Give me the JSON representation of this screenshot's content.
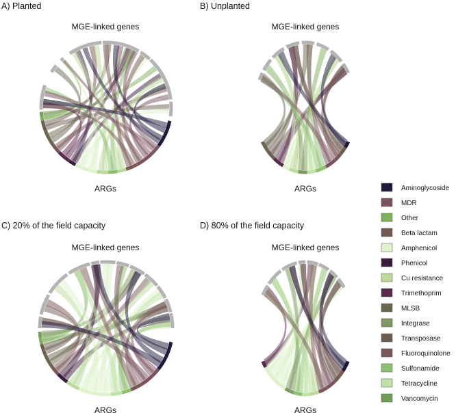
{
  "panels": [
    {
      "title": "A) Planted",
      "top_label": "MGE-linked genes",
      "bottom_label": "ARGs",
      "chord_width": 5,
      "top_arcs": [
        [
          171,
          182
        ],
        [
          160,
          171
        ],
        [
          140,
          147
        ],
        [
          131,
          134
        ],
        [
          113,
          124
        ],
        [
          108,
          113
        ],
        [
          94,
          108
        ],
        [
          85,
          93
        ],
        [
          72,
          85
        ],
        [
          67,
          72
        ],
        [
          60,
          67
        ],
        [
          48,
          58
        ],
        [
          34,
          47
        ],
        [
          23,
          34
        ],
        [
          14,
          23
        ],
        [
          7,
          14
        ],
        [
          -8,
          5
        ]
      ],
      "bottom_arcs": [
        {
          "range": [
            184,
            188
          ],
          "category": "Integrase"
        },
        {
          "range": [
            188,
            192
          ],
          "category": "Other"
        },
        {
          "range": [
            192,
            202
          ],
          "category": "Transposase"
        },
        {
          "range": [
            202,
            216
          ],
          "category": "MLSB"
        },
        {
          "range": [
            216,
            224
          ],
          "category": "Fluoroquinolone"
        },
        {
          "range": [
            224,
            236
          ],
          "category": "Trimethoprim"
        },
        {
          "range": [
            236,
            242
          ],
          "category": "Phenicol"
        },
        {
          "range": [
            242,
            252
          ],
          "category": "Amphenicol"
        },
        {
          "range": [
            252,
            262
          ],
          "category": "Amphenicol"
        },
        {
          "range": [
            262,
            272
          ],
          "category": "Cu resistance"
        },
        {
          "range": [
            272,
            280
          ],
          "category": "Sulfonamide"
        },
        {
          "range": [
            280,
            288
          ],
          "category": "Cu resistance"
        },
        {
          "range": [
            288,
            298
          ],
          "category": "Fluoroquinolone"
        },
        {
          "range": [
            298,
            306
          ],
          "category": "Fluoroquinolone"
        },
        {
          "range": [
            306,
            316
          ],
          "category": "MDR"
        },
        {
          "range": [
            316,
            324
          ],
          "category": "MDR"
        },
        {
          "range": [
            324,
            334
          ],
          "category": "Aminoglycoside"
        },
        {
          "range": [
            334,
            348
          ],
          "category": "Aminoglycoside"
        }
      ]
    },
    {
      "title": "B) Unplanted",
      "top_label": "MGE-linked genes",
      "bottom_label": "ARGs",
      "chord_width": 7,
      "top_arcs": [
        [
          148,
          155
        ],
        [
          133,
          145
        ],
        [
          115,
          130
        ],
        [
          97,
          112
        ],
        [
          80,
          94
        ],
        [
          63,
          77
        ],
        [
          45,
          60
        ],
        [
          32,
          42
        ]
      ],
      "bottom_arcs": [
        {
          "range": [
            212,
            222
          ],
          "category": "MLSB"
        },
        {
          "range": [
            222,
            232
          ],
          "category": "Transposase"
        },
        {
          "range": [
            232,
            244
          ],
          "category": "Trimethoprim"
        },
        {
          "range": [
            244,
            252
          ],
          "category": "Amphenicol"
        },
        {
          "range": [
            252,
            262
          ],
          "category": "Cu resistance"
        },
        {
          "range": [
            262,
            272
          ],
          "category": "Integrase"
        },
        {
          "range": [
            272,
            282
          ],
          "category": "Tetracycline"
        },
        {
          "range": [
            282,
            294
          ],
          "category": "Sulfonamide"
        },
        {
          "range": [
            294,
            306
          ],
          "category": "MDR"
        },
        {
          "range": [
            306,
            314
          ],
          "category": "Fluoroquinolone"
        },
        {
          "range": [
            314,
            322
          ],
          "category": "Transposase"
        },
        {
          "range": [
            322,
            328
          ],
          "category": "Aminoglycoside"
        }
      ]
    },
    {
      "title": "C) 20% of the field capacity",
      "top_label": "MGE-linked genes",
      "bottom_label": "ARGs",
      "chord_width": 6,
      "top_arcs": [
        [
          170,
          180
        ],
        [
          150,
          168
        ],
        [
          126,
          148
        ],
        [
          104,
          124
        ],
        [
          96,
          103
        ],
        [
          82,
          95
        ],
        [
          70,
          81
        ],
        [
          55,
          69
        ],
        [
          40,
          54
        ],
        [
          27,
          39
        ],
        [
          14,
          26
        ],
        [
          6,
          13
        ],
        [
          0,
          6
        ]
      ],
      "bottom_arcs": [
        {
          "range": [
            183,
            188
          ],
          "category": "Integrase"
        },
        {
          "range": [
            188,
            194
          ],
          "category": "Other"
        },
        {
          "range": [
            194,
            204
          ],
          "category": "Transposase"
        },
        {
          "range": [
            204,
            216
          ],
          "category": "MLSB"
        },
        {
          "range": [
            216,
            224
          ],
          "category": "Fluoroquinolone"
        },
        {
          "range": [
            224,
            234
          ],
          "category": "Phenicol"
        },
        {
          "range": [
            234,
            246
          ],
          "category": "Cu resistance"
        },
        {
          "range": [
            246,
            256
          ],
          "category": "Amphenicol"
        },
        {
          "range": [
            256,
            264
          ],
          "category": "Amphenicol"
        },
        {
          "range": [
            264,
            274
          ],
          "category": "Amphenicol"
        },
        {
          "range": [
            274,
            284
          ],
          "category": "Tetracycline"
        },
        {
          "range": [
            284,
            292
          ],
          "category": "Sulfonamide"
        },
        {
          "range": [
            292,
            302
          ],
          "category": "Fluoroquinolone"
        },
        {
          "range": [
            302,
            312
          ],
          "category": "MDR"
        },
        {
          "range": [
            312,
            322
          ],
          "category": "MDR"
        },
        {
          "range": [
            322,
            334
          ],
          "category": "Aminoglycoside"
        },
        {
          "range": [
            334,
            348
          ],
          "category": "Aminoglycoside"
        }
      ]
    },
    {
      "title": "D) 80% of the field capacity",
      "top_label": "MGE-linked genes",
      "bottom_label": "ARGs",
      "chord_width": 7,
      "top_arcs": [
        [
          140,
          150
        ],
        [
          120,
          138
        ],
        [
          100,
          118
        ],
        [
          90,
          98
        ],
        [
          75,
          88
        ],
        [
          62,
          74
        ],
        [
          50,
          60
        ],
        [
          38,
          48
        ]
      ],
      "bottom_arcs": [
        {
          "range": [
            210,
            216
          ],
          "category": "Trimethoprim"
        },
        {
          "range": [
            216,
            226
          ],
          "category": "Amphenicol"
        },
        {
          "range": [
            226,
            236
          ],
          "category": "Amphenicol"
        },
        {
          "range": [
            236,
            246
          ],
          "category": "Amphenicol"
        },
        {
          "range": [
            246,
            256
          ],
          "category": "Integrase"
        },
        {
          "range": [
            256,
            266
          ],
          "category": "Sulfonamide"
        },
        {
          "range": [
            266,
            276
          ],
          "category": "Tetracycline"
        },
        {
          "range": [
            276,
            286
          ],
          "category": "Cu resistance"
        },
        {
          "range": [
            286,
            296
          ],
          "category": "Fluoroquinolone"
        },
        {
          "range": [
            296,
            306
          ],
          "category": "MDR"
        },
        {
          "range": [
            306,
            314
          ],
          "category": "Transposase"
        },
        {
          "range": [
            314,
            320
          ],
          "category": "Fluoroquinolone"
        },
        {
          "range": [
            320,
            330
          ],
          "category": "Aminoglycoside"
        }
      ]
    }
  ],
  "legend": [
    {
      "label": "Aminoglycoside",
      "color": "#1f1a3d"
    },
    {
      "label": "MDR",
      "color": "#7a5260"
    },
    {
      "label": "Other",
      "color": "#7fb05a"
    },
    {
      "label": "Beta lactam",
      "color": "#6e5a50"
    },
    {
      "label": "Amphenicol",
      "color": "#def2cc"
    },
    {
      "label": "Phenicol",
      "color": "#3a1c3d"
    },
    {
      "label": "Cu resistance",
      "color": "#bcd99b"
    },
    {
      "label": "Trimethoprim",
      "color": "#5a2a4e"
    },
    {
      "label": "MLSB",
      "color": "#6b6650"
    },
    {
      "label": "Integrase",
      "color": "#7e9a62"
    },
    {
      "label": "Transposase",
      "color": "#6e5e52"
    },
    {
      "label": "Fluoroquinolone",
      "color": "#7a5656"
    },
    {
      "label": "Sulfonamide",
      "color": "#8cc06e"
    },
    {
      "label": "Tetracycline",
      "color": "#bde3a6"
    },
    {
      "label": "Vancomycin",
      "color": "#6f9c56"
    }
  ],
  "colors": {
    "mge_arc": "#b4b4b4"
  }
}
